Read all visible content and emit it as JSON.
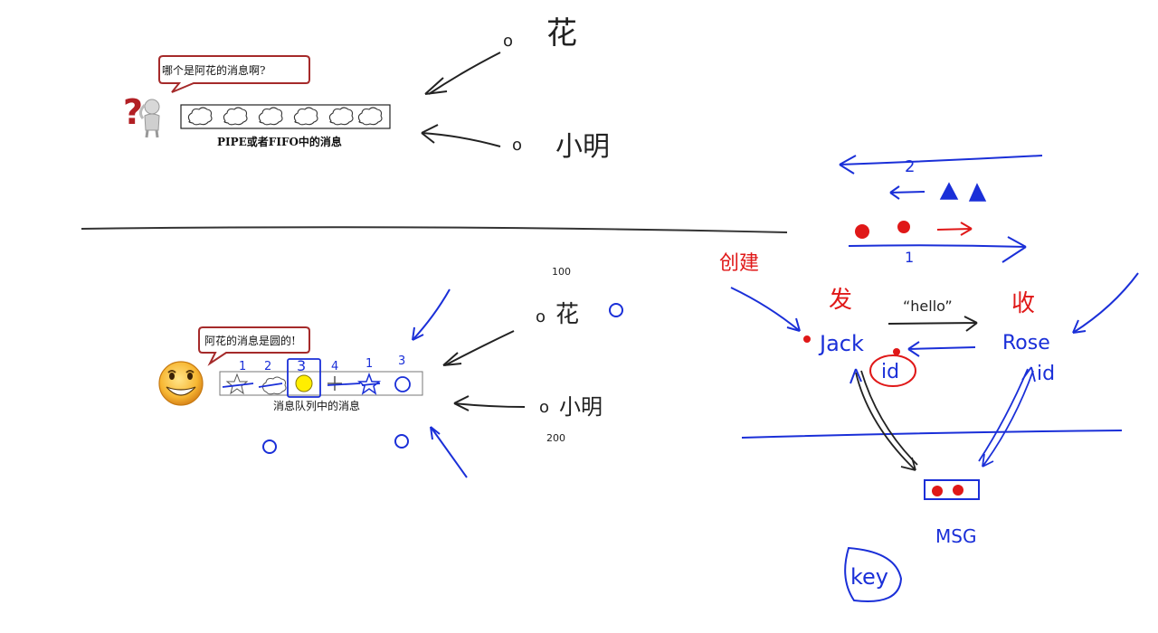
{
  "top_scene": {
    "bubble_text": "哪个是阿花的消息啊?",
    "caption": "PIPE或者FIFO中的消息",
    "sender_top": {
      "marker": "o",
      "name": "花"
    },
    "sender_bottom": {
      "marker": "o",
      "name": "小明"
    }
  },
  "bottom_scene": {
    "bubble_text": "阿花的消息是圆的!",
    "caption": "消息队列中的消息",
    "slot_numbers": [
      "1",
      "2",
      "3",
      "4",
      "1",
      "3"
    ],
    "sender_top": {
      "marker": "o",
      "name": "花",
      "priority": "100"
    },
    "sender_bottom": {
      "marker": "o",
      "name": "小明",
      "priority": "200"
    }
  },
  "right_diagram": {
    "arrow_number_top": "2",
    "arrow_number_bottom": "1",
    "create_label": "创建",
    "send_label": "发",
    "receive_label": "收",
    "message_label": "“hello”",
    "left_process": "Jack",
    "right_process": "Rose",
    "left_id": "id",
    "right_id": "id",
    "queue_label": "MSG",
    "key_label": "key"
  },
  "colors": {
    "ink_black": "#222222",
    "ink_blue": "#1a2fd8",
    "ink_red": "#e01818",
    "bubble_border": "#a52a2a",
    "question_mark": "#b21f24",
    "smiley": "#f5a623"
  }
}
